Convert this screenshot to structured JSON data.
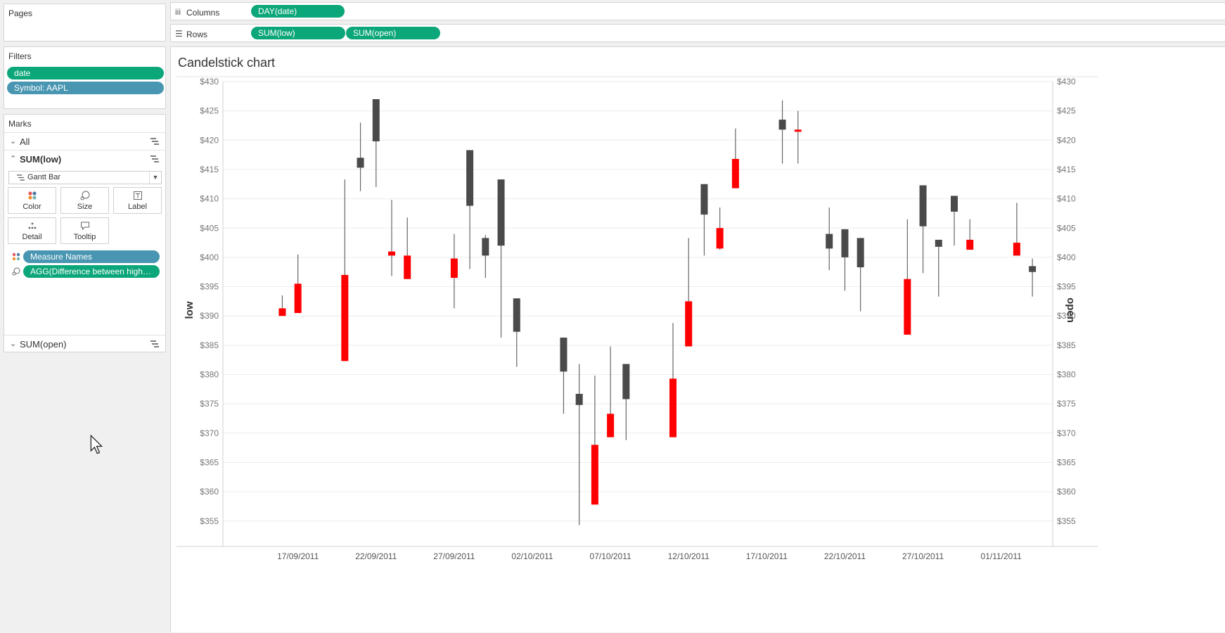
{
  "pages": {
    "title": "Pages"
  },
  "filters": {
    "title": "Filters",
    "items": [
      "date",
      "Symbol: AAPL"
    ]
  },
  "marks": {
    "title": "Marks",
    "all_label": "All",
    "active_label": "SUM(low)",
    "mark_type": "Gantt Bar",
    "buttons": {
      "color": "Color",
      "size": "Size",
      "label": "Label",
      "detail": "Detail",
      "tooltip": "Tooltip"
    },
    "fields": [
      "Measure Names",
      "AGG(Difference between high an.."
    ],
    "secondary_label": "SUM(open)"
  },
  "columns": {
    "label": "Columns",
    "pills": [
      "DAY(date)"
    ]
  },
  "rows": {
    "label": "Rows",
    "pills": [
      "SUM(low)",
      "SUM(open)"
    ]
  },
  "colors": {
    "up": "#ff0000",
    "down": "#4a4a4a",
    "wick": "#666666",
    "pill_green": "#0ba679",
    "pill_blue": "#4996b2"
  },
  "chart_data": {
    "type": "candlestick",
    "title": "Candelstick chart",
    "ylabel_left": "low",
    "ylabel_right": "open",
    "ylim": [
      350,
      430
    ],
    "y_ticks": [
      "$430",
      "$425",
      "$420",
      "$415",
      "$410",
      "$405",
      "$400",
      "$395",
      "$390",
      "$385",
      "$380",
      "$375",
      "$370",
      "$365",
      "$360",
      "$355"
    ],
    "x_ticks": [
      "17/09/2011",
      "22/09/2011",
      "27/09/2011",
      "02/10/2011",
      "07/10/2011",
      "12/10/2011",
      "17/10/2011",
      "22/10/2011",
      "27/10/2011",
      "01/11/2011"
    ],
    "x_tick_days": [
      3,
      8,
      13,
      18,
      23,
      28,
      33,
      38,
      43,
      48
    ],
    "x_range": [
      -1.8,
      51.3
    ],
    "candles": [
      {
        "d": 2,
        "lo": 390,
        "hi": 393.5,
        "open": 391.3,
        "close": 390,
        "up": true
      },
      {
        "d": 3,
        "lo": 390.5,
        "hi": 400.5,
        "open": 395.5,
        "close": 390.5,
        "up": true
      },
      {
        "d": 6,
        "lo": 382.3,
        "hi": 413.3,
        "open": 397,
        "close": 382.3,
        "up": true
      },
      {
        "d": 7,
        "lo": 411.3,
        "hi": 423,
        "open": 415.3,
        "close": 417,
        "up": false
      },
      {
        "d": 8,
        "lo": 412,
        "hi": 427,
        "open": 419.8,
        "close": 427,
        "up": false
      },
      {
        "d": 9,
        "lo": 396.8,
        "hi": 409.8,
        "open": 401,
        "close": 400.3,
        "up": true
      },
      {
        "d": 10,
        "lo": 396.3,
        "hi": 406.8,
        "open": 400.3,
        "close": 396.3,
        "up": true
      },
      {
        "d": 13,
        "lo": 391.3,
        "hi": 404,
        "open": 399.8,
        "close": 396.5,
        "up": true
      },
      {
        "d": 14,
        "lo": 398,
        "hi": 418.3,
        "open": 408.8,
        "close": 418.3,
        "up": false
      },
      {
        "d": 15,
        "lo": 396.5,
        "hi": 403.8,
        "open": 400.3,
        "close": 403.3,
        "up": false
      },
      {
        "d": 16,
        "lo": 386.3,
        "hi": 413.3,
        "open": 402,
        "close": 413.3,
        "up": false
      },
      {
        "d": 17,
        "lo": 381.3,
        "hi": 393,
        "open": 387.3,
        "close": 393,
        "up": false
      },
      {
        "d": 20,
        "lo": 373.3,
        "hi": 386.3,
        "open": 380.5,
        "close": 386.3,
        "up": false
      },
      {
        "d": 21,
        "lo": 354.3,
        "hi": 381.8,
        "open": 374.8,
        "close": 376.7,
        "up": false
      },
      {
        "d": 22,
        "lo": 357.8,
        "hi": 379.8,
        "open": 368,
        "close": 357.8,
        "up": true
      },
      {
        "d": 23,
        "lo": 369.3,
        "hi": 384.8,
        "open": 373.3,
        "close": 369.3,
        "up": true
      },
      {
        "d": 24,
        "lo": 368.8,
        "hi": 381.8,
        "open": 375.8,
        "close": 381.8,
        "up": false
      },
      {
        "d": 27,
        "lo": 369.3,
        "hi": 388.8,
        "open": 379.3,
        "close": 369.3,
        "up": true
      },
      {
        "d": 28,
        "lo": 384.8,
        "hi": 403.3,
        "open": 392.5,
        "close": 384.8,
        "up": true
      },
      {
        "d": 29,
        "lo": 400.3,
        "hi": 412.5,
        "open": 407.3,
        "close": 412.5,
        "up": false
      },
      {
        "d": 30,
        "lo": 401.3,
        "hi": 408.5,
        "open": 405,
        "close": 401.5,
        "up": true
      },
      {
        "d": 31,
        "lo": 411.8,
        "hi": 422,
        "open": 416.8,
        "close": 411.8,
        "up": true
      },
      {
        "d": 34,
        "lo": 416,
        "hi": 426.8,
        "open": 421.8,
        "close": 423.5,
        "up": false
      },
      {
        "d": 35,
        "lo": 416,
        "hi": 425,
        "open": 421.8,
        "close": 421.5,
        "up": true
      },
      {
        "d": 37,
        "lo": 397.8,
        "hi": 408.5,
        "open": 401.5,
        "close": 404,
        "up": false
      },
      {
        "d": 38,
        "lo": 394.3,
        "hi": 404.8,
        "open": 400,
        "close": 404.8,
        "up": false
      },
      {
        "d": 39,
        "lo": 390.8,
        "hi": 403.3,
        "open": 398.3,
        "close": 403.3,
        "up": false
      },
      {
        "d": 42,
        "lo": 386.8,
        "hi": 406.5,
        "open": 396.3,
        "close": 386.8,
        "up": true
      },
      {
        "d": 43,
        "lo": 397.3,
        "hi": 412.3,
        "open": 405.3,
        "close": 412.3,
        "up": false
      },
      {
        "d": 44,
        "lo": 393.3,
        "hi": 403,
        "open": 401.8,
        "close": 403,
        "up": false
      },
      {
        "d": 45,
        "lo": 402,
        "hi": 410.5,
        "open": 407.8,
        "close": 410.5,
        "up": false
      },
      {
        "d": 46,
        "lo": 401.3,
        "hi": 406.5,
        "open": 403,
        "close": 401.3,
        "up": true
      },
      {
        "d": 49,
        "lo": 400.3,
        "hi": 409.3,
        "open": 402.5,
        "close": 400.3,
        "up": true
      },
      {
        "d": 50,
        "lo": 393.3,
        "hi": 399.8,
        "open": 397.5,
        "close": 398.5,
        "up": false
      }
    ]
  }
}
